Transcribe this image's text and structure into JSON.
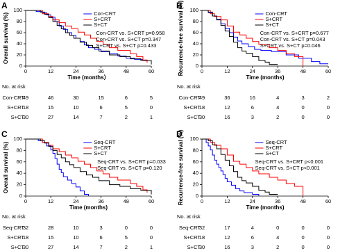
{
  "chart_data": [
    {
      "type": "step",
      "label": "A",
      "xlabel": "Time (months）",
      "ylabel": "Overall survival (%)",
      "xlim": [
        0,
        60
      ],
      "ylim": [
        0,
        100
      ],
      "xticks": [
        0,
        12,
        24,
        36,
        48,
        60
      ],
      "yticks": [
        0,
        20,
        40,
        60,
        80,
        100
      ],
      "series": [
        {
          "name": "Con-CRT",
          "color": "#0000ff",
          "x": [
            0,
            5,
            8,
            10,
            12,
            14,
            16,
            18,
            20,
            22,
            24,
            26,
            28,
            30,
            33,
            36,
            40,
            44,
            48,
            52,
            56,
            60
          ],
          "values": [
            100,
            98,
            96,
            92,
            88,
            80,
            72,
            66,
            60,
            55,
            50,
            44,
            38,
            33,
            30,
            26,
            22,
            18,
            14,
            12,
            10,
            10
          ]
        },
        {
          "name": "S+CRT",
          "color": "#ff0000",
          "x": [
            0,
            8,
            11,
            13,
            16,
            19,
            22,
            25,
            28,
            31,
            34,
            37,
            40,
            44,
            50,
            53,
            56,
            58
          ],
          "values": [
            100,
            94,
            89,
            83,
            78,
            72,
            67,
            61,
            56,
            50,
            44,
            39,
            33,
            28,
            22,
            17,
            11,
            6
          ]
        },
        {
          "name": "S+CT",
          "color": "#000000",
          "x": [
            0,
            7,
            9,
            11,
            13,
            15,
            17,
            19,
            21,
            23,
            26,
            29,
            32,
            35,
            40,
            45,
            50,
            55,
            60
          ],
          "values": [
            100,
            97,
            93,
            87,
            80,
            73,
            67,
            60,
            55,
            50,
            43,
            37,
            33,
            27,
            20,
            17,
            13,
            10,
            3
          ]
        }
      ],
      "annotations": [
        "Con-CRT vs. S+CRT p=0.958",
        "Con-CRT vs. S+CT p=0.347",
        "S+CRT vs. S+CT p=0.433"
      ],
      "risk_table": {
        "title": "No. at risk",
        "rows": [
          {
            "name": "Con-CRT",
            "values": [
              49,
              46,
              30,
              15,
              6,
              5
            ]
          },
          {
            "name": "S+CRT",
            "values": [
              18,
              15,
              10,
              6,
              5,
              0
            ]
          },
          {
            "name": "S+CT",
            "values": [
              30,
              27,
              14,
              7,
              2,
              1
            ]
          }
        ]
      }
    },
    {
      "type": "step",
      "label": "B",
      "xlabel": "Time (months)",
      "ylabel": "Recurrence-free survival (%)",
      "xlim": [
        0,
        60
      ],
      "ylim": [
        0,
        100
      ],
      "xticks": [
        0,
        12,
        24,
        36,
        48,
        60
      ],
      "yticks": [
        0,
        20,
        40,
        60,
        80,
        100
      ],
      "series": [
        {
          "name": "Con-CRT",
          "color": "#0000ff",
          "x": [
            0,
            3,
            5,
            7,
            9,
            11,
            13,
            15,
            17,
            19,
            22,
            25,
            28,
            33,
            40,
            46,
            52,
            56,
            60
          ],
          "values": [
            100,
            96,
            90,
            84,
            76,
            68,
            60,
            52,
            45,
            40,
            35,
            30,
            28,
            26,
            20,
            14,
            8,
            4,
            4
          ]
        },
        {
          "name": "S+CRT",
          "color": "#ff0000",
          "x": [
            0,
            4,
            6,
            9,
            12,
            15,
            18,
            21,
            24,
            27,
            32,
            36,
            40,
            44,
            48
          ],
          "values": [
            100,
            94,
            89,
            83,
            72,
            61,
            56,
            50,
            44,
            39,
            33,
            28,
            22,
            17,
            0
          ]
        },
        {
          "name": "S+CT",
          "color": "#000000",
          "x": [
            0,
            3,
            5,
            7,
            9,
            11,
            13,
            15,
            17,
            19,
            21,
            24,
            27,
            30,
            32,
            36
          ],
          "values": [
            100,
            97,
            90,
            83,
            73,
            63,
            53,
            43,
            33,
            27,
            23,
            17,
            10,
            7,
            3,
            3
          ]
        }
      ],
      "annotations": [
        "Con-CRT vs. S+CRT p=0.677",
        "Con-CRT vs. S+CT p=0.043",
        "S+CRT vs. S+CT p=0.046"
      ],
      "risk_table": {
        "title": "No. at risk",
        "rows": [
          {
            "name": "Con-CRT",
            "values": [
              49,
              36,
              16,
              4,
              3,
              2
            ]
          },
          {
            "name": "S+CRT",
            "values": [
              18,
              12,
              6,
              4,
              0,
              0
            ]
          },
          {
            "name": "S+CT",
            "values": [
              30,
              16,
              3,
              2,
              0,
              0
            ]
          }
        ]
      }
    },
    {
      "type": "step",
      "label": "C",
      "xlabel": "Time (months)",
      "ylabel": "Overall survival (%)",
      "xlim": [
        0,
        60
      ],
      "ylim": [
        0,
        100
      ],
      "xticks": [
        0,
        12,
        24,
        36,
        48,
        60
      ],
      "yticks": [
        0,
        20,
        40,
        60,
        80,
        100
      ],
      "series": [
        {
          "name": "Seq-CRT",
          "color": "#0000ff",
          "x": [
            0,
            6,
            8,
            10,
            12,
            13,
            14,
            15,
            16,
            17,
            18,
            20,
            22,
            24,
            26,
            28,
            30
          ],
          "values": [
            100,
            97,
            94,
            88,
            81,
            75,
            66,
            56,
            47,
            41,
            34,
            28,
            22,
            16,
            9,
            3,
            0
          ]
        },
        {
          "name": "S+CRT",
          "color": "#ff0000",
          "x": [
            0,
            8,
            11,
            13,
            16,
            19,
            22,
            25,
            28,
            31,
            34,
            37,
            40,
            44,
            50,
            53,
            56,
            58
          ],
          "values": [
            100,
            94,
            89,
            83,
            78,
            72,
            67,
            61,
            56,
            50,
            44,
            39,
            33,
            28,
            22,
            17,
            11,
            6
          ]
        },
        {
          "name": "S+CT",
          "color": "#000000",
          "x": [
            0,
            7,
            9,
            11,
            13,
            15,
            17,
            19,
            21,
            23,
            26,
            29,
            32,
            35,
            40,
            45,
            50,
            55,
            60
          ],
          "values": [
            100,
            97,
            93,
            87,
            80,
            73,
            67,
            60,
            55,
            50,
            43,
            37,
            33,
            27,
            20,
            17,
            13,
            10,
            3
          ]
        }
      ],
      "annotations": [
        "Seq-CRT vs. S+CRT p=0.033",
        "Seq-CRT vs. S+CT p=0.120"
      ],
      "risk_table": {
        "title": "No. at risk",
        "rows": [
          {
            "name": "Seq-CRT",
            "values": [
              32,
              28,
              10,
              3,
              0,
              0
            ]
          },
          {
            "name": "S+CRT",
            "values": [
              18,
              15,
              10,
              6,
              5,
              0
            ]
          },
          {
            "name": "S+CT",
            "values": [
              30,
              27,
              14,
              7,
              2,
              1
            ]
          }
        ]
      }
    },
    {
      "type": "step",
      "label": "D",
      "xlabel": "Time (months)",
      "ylabel": "Recurrence-free survival (%)",
      "xlim": [
        0,
        60
      ],
      "ylim": [
        0,
        100
      ],
      "xticks": [
        0,
        12,
        24,
        36,
        48,
        60
      ],
      "yticks": [
        0,
        20,
        40,
        60,
        80,
        100
      ],
      "series": [
        {
          "name": "Seq-CRT",
          "color": "#0000ff",
          "x": [
            0,
            2,
            3,
            4,
            5,
            6,
            7,
            8,
            9,
            10,
            11,
            12,
            14,
            16,
            18,
            20,
            24,
            27
          ],
          "values": [
            100,
            94,
            88,
            81,
            72,
            63,
            56,
            50,
            44,
            38,
            31,
            25,
            19,
            13,
            9,
            6,
            3,
            0
          ]
        },
        {
          "name": "S+CRT",
          "color": "#ff0000",
          "x": [
            0,
            4,
            6,
            9,
            12,
            15,
            18,
            21,
            24,
            27,
            32,
            36,
            40,
            44,
            48
          ],
          "values": [
            100,
            94,
            89,
            83,
            72,
            61,
            56,
            50,
            44,
            39,
            33,
            28,
            22,
            17,
            0
          ]
        },
        {
          "name": "S+CT",
          "color": "#000000",
          "x": [
            0,
            3,
            5,
            7,
            9,
            11,
            13,
            15,
            17,
            19,
            21,
            24,
            27,
            30,
            32,
            36
          ],
          "values": [
            100,
            97,
            90,
            83,
            73,
            63,
            53,
            43,
            33,
            27,
            23,
            17,
            10,
            7,
            3,
            3
          ]
        }
      ],
      "annotations": [
        "Seq-CRT vs. S+CRT p<0.001",
        "Seq-CRT vs. S+CT p<0.001"
      ],
      "risk_table": {
        "title": "No. at risk",
        "rows": [
          {
            "name": "Seq-CRT",
            "values": [
              32,
              17,
              4,
              0,
              0,
              0
            ]
          },
          {
            "name": "S+CRT",
            "values": [
              18,
              12,
              6,
              4,
              0,
              0
            ]
          },
          {
            "name": "S+CT",
            "values": [
              30,
              16,
              3,
              2,
              0,
              0
            ]
          }
        ]
      }
    }
  ]
}
